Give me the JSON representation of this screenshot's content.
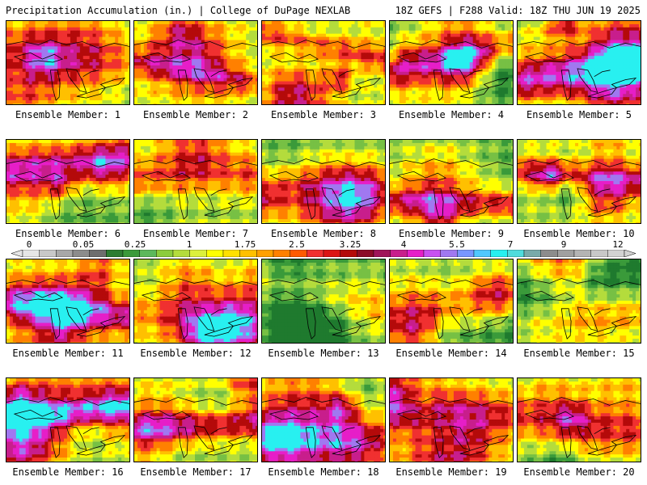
{
  "header": {
    "left": "Precipitation Accumulation (in.) | College of DuPage NEXLAB",
    "right": "18Z GEFS | F288 Valid: 18Z THU JUN 19 2025"
  },
  "members": [
    {
      "label": "Ensemble Member: 1"
    },
    {
      "label": "Ensemble Member: 2"
    },
    {
      "label": "Ensemble Member: 3"
    },
    {
      "label": "Ensemble Member: 4"
    },
    {
      "label": "Ensemble Member: 5"
    },
    {
      "label": "Ensemble Member: 6"
    },
    {
      "label": "Ensemble Member: 7"
    },
    {
      "label": "Ensemble Member: 8"
    },
    {
      "label": "Ensemble Member: 9"
    },
    {
      "label": "Ensemble Member: 10"
    },
    {
      "label": "Ensemble Member: 11"
    },
    {
      "label": "Ensemble Member: 12"
    },
    {
      "label": "Ensemble Member: 13"
    },
    {
      "label": "Ensemble Member: 14"
    },
    {
      "label": "Ensemble Member: 15"
    },
    {
      "label": "Ensemble Member: 16"
    },
    {
      "label": "Ensemble Member: 17"
    },
    {
      "label": "Ensemble Member: 18"
    },
    {
      "label": "Ensemble Member: 19"
    },
    {
      "label": "Ensemble Member: 20"
    }
  ],
  "colorbar": {
    "tick_labels": [
      "0",
      "0.05",
      "0.25",
      "1",
      "1.75",
      "2.5",
      "3.25",
      "4",
      "5.5",
      "7",
      "9",
      "12"
    ],
    "colors": [
      "#e6e6e6",
      "#c8c8c8",
      "#a8a8a8",
      "#8c8c8c",
      "#6e6e6e",
      "#2d7d32",
      "#3a9a3a",
      "#5cb85c",
      "#8ccc3c",
      "#b4dc3c",
      "#dcf03c",
      "#ffff00",
      "#ffe000",
      "#ffc000",
      "#ffa000",
      "#ff8000",
      "#ff5a00",
      "#f03030",
      "#dc1414",
      "#b40a0a",
      "#8c0a28",
      "#a0145a",
      "#c81e8c",
      "#e61ec8",
      "#c850f0",
      "#a078f0",
      "#7896ff",
      "#50c8ff",
      "#28f0f0",
      "#50dcdc",
      "#78aaaa",
      "#8c8c8c",
      "#a0a0a0",
      "#b4b4b4",
      "#c8c8c8",
      "#d2d2d2"
    ]
  }
}
